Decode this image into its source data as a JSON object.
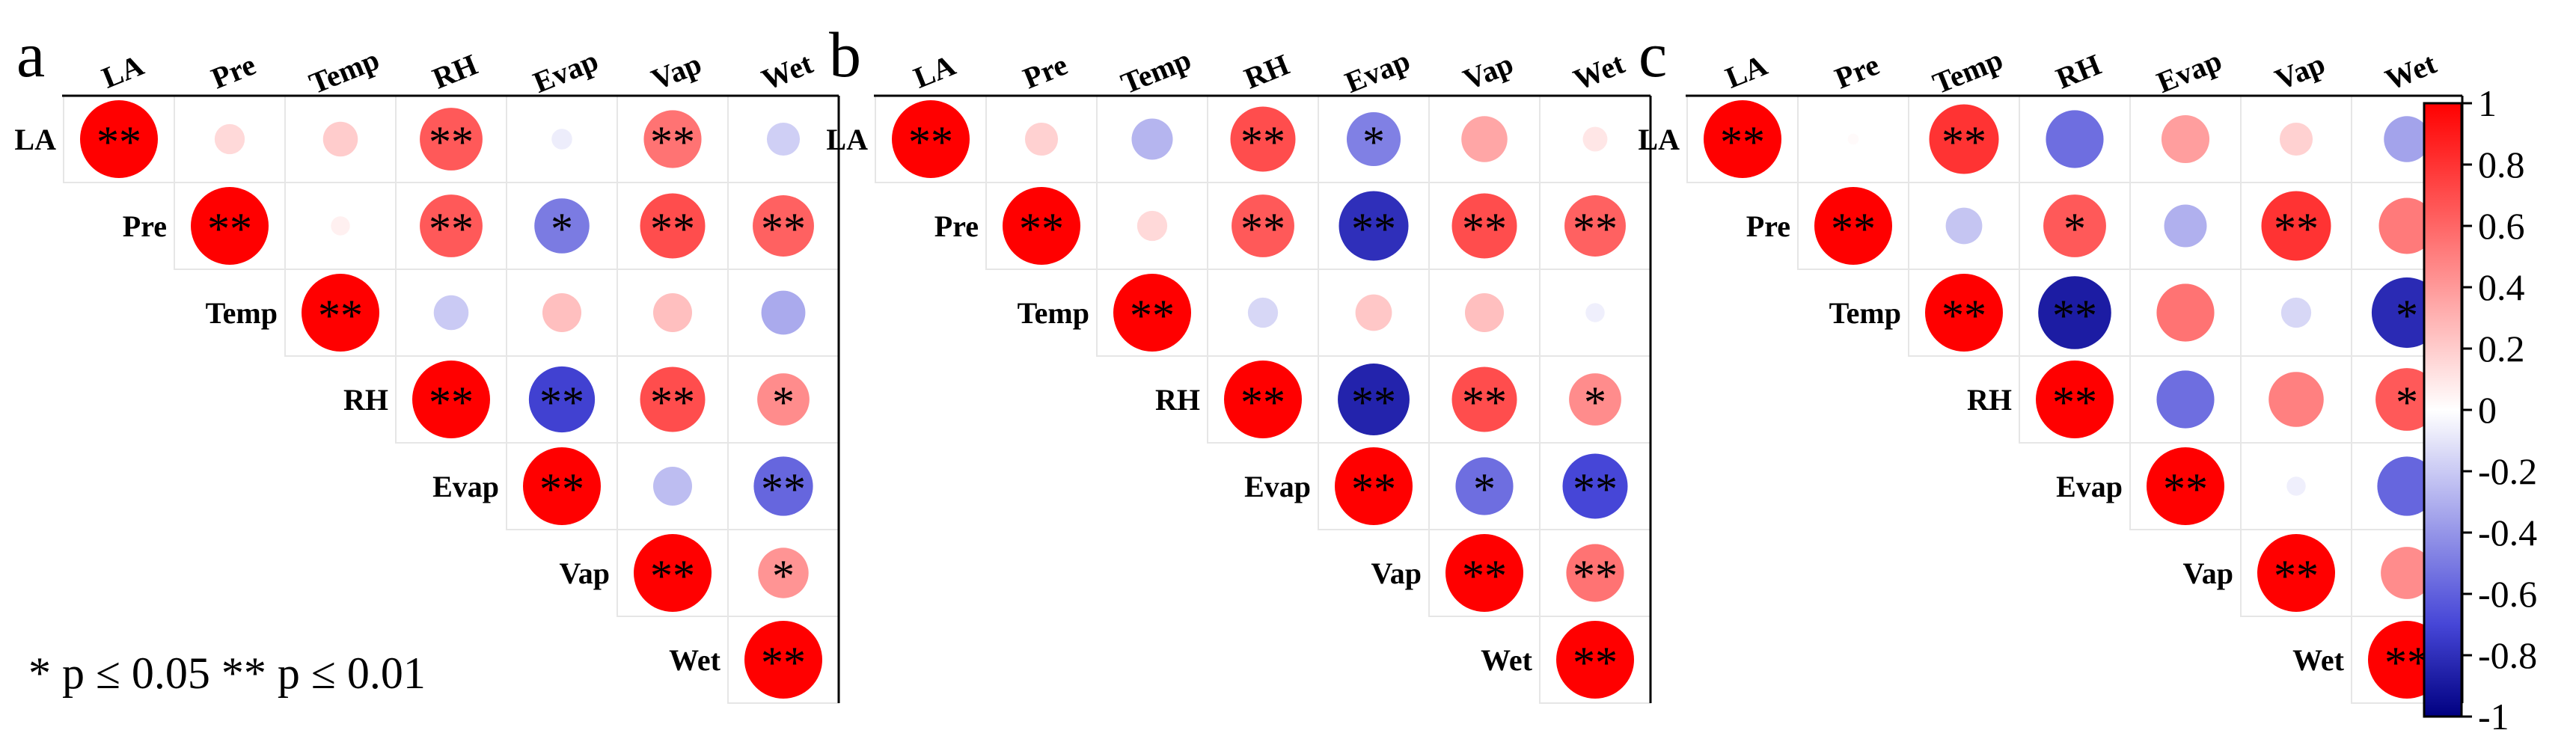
{
  "chart_data": [
    {
      "type": "heatmap",
      "panel": "a",
      "variables": [
        "LA",
        "Pre",
        "Temp",
        "RH",
        "Evap",
        "Vap",
        "Wet"
      ],
      "matrix": [
        [
          1.0,
          0.15,
          0.2,
          0.65,
          -0.07,
          0.55,
          -0.18
        ],
        [
          null,
          1.0,
          0.06,
          0.65,
          -0.5,
          0.7,
          0.62
        ],
        [
          null,
          null,
          1.0,
          -0.2,
          0.25,
          0.25,
          -0.32
        ],
        [
          null,
          null,
          null,
          1.0,
          -0.72,
          0.7,
          0.45
        ],
        [
          null,
          null,
          null,
          null,
          1.0,
          -0.25,
          -0.58
        ],
        [
          null,
          null,
          null,
          null,
          null,
          1.0,
          0.42
        ],
        [
          null,
          null,
          null,
          null,
          null,
          null,
          1.0
        ]
      ],
      "significance": [
        [
          "**",
          "",
          "",
          "**",
          "",
          "**",
          ""
        ],
        [
          "",
          "**",
          "",
          "**",
          "*",
          "**",
          "**"
        ],
        [
          "",
          "",
          "**",
          "",
          "",
          "",
          ""
        ],
        [
          "",
          "",
          "",
          "**",
          "**",
          "**",
          "*"
        ],
        [
          "",
          "",
          "",
          "",
          "**",
          "",
          "**"
        ],
        [
          "",
          "",
          "",
          "",
          "",
          "**",
          "*"
        ],
        [
          "",
          "",
          "",
          "",
          "",
          "",
          "**"
        ]
      ]
    },
    {
      "type": "heatmap",
      "panel": "b",
      "variables": [
        "LA",
        "Pre",
        "Temp",
        "RH",
        "Evap",
        "Vap",
        "Wet"
      ],
      "matrix": [
        [
          1.0,
          0.18,
          -0.28,
          0.7,
          -0.48,
          0.35,
          0.1
        ],
        [
          null,
          1.0,
          0.15,
          0.65,
          -0.8,
          0.7,
          0.62
        ],
        [
          null,
          null,
          1.0,
          -0.15,
          0.22,
          0.25,
          -0.06
        ],
        [
          null,
          null,
          null,
          1.0,
          -0.85,
          0.7,
          0.45
        ],
        [
          null,
          null,
          null,
          null,
          1.0,
          -0.55,
          -0.7
        ],
        [
          null,
          null,
          null,
          null,
          null,
          1.0,
          0.55
        ],
        [
          null,
          null,
          null,
          null,
          null,
          null,
          1.0
        ]
      ],
      "significance": [
        [
          "**",
          "",
          "",
          "**",
          "*",
          "",
          ""
        ],
        [
          "",
          "**",
          "",
          "**",
          "**",
          "**",
          "**"
        ],
        [
          "",
          "",
          "**",
          "",
          "",
          "",
          ""
        ],
        [
          "",
          "",
          "",
          "**",
          "**",
          "**",
          "*"
        ],
        [
          "",
          "",
          "",
          "",
          "**",
          "*",
          "**"
        ],
        [
          "",
          "",
          "",
          "",
          "",
          "**",
          "**"
        ],
        [
          "",
          "",
          "",
          "",
          "",
          "",
          "**"
        ]
      ]
    },
    {
      "type": "heatmap",
      "panel": "c",
      "variables": [
        "LA",
        "Pre",
        "Temp",
        "RH",
        "Evap",
        "Vap",
        "Wet"
      ],
      "matrix": [
        [
          1.0,
          0.02,
          0.8,
          -0.55,
          0.38,
          0.18,
          -0.35
        ],
        [
          null,
          1.0,
          -0.22,
          0.65,
          -0.3,
          0.8,
          0.52
        ],
        [
          null,
          null,
          1.0,
          -0.88,
          0.55,
          -0.15,
          -0.82
        ],
        [
          null,
          null,
          null,
          1.0,
          -0.55,
          0.5,
          0.65
        ],
        [
          null,
          null,
          null,
          null,
          1.0,
          -0.06,
          -0.58
        ],
        [
          null,
          null,
          null,
          null,
          null,
          1.0,
          0.45
        ],
        [
          null,
          null,
          null,
          null,
          null,
          null,
          1.0
        ]
      ],
      "significance": [
        [
          "**",
          "",
          "**",
          "",
          "",
          "",
          ""
        ],
        [
          "",
          "**",
          "",
          "*",
          "",
          "**",
          ""
        ],
        [
          "",
          "",
          "**",
          "**",
          "",
          "",
          "*"
        ],
        [
          "",
          "",
          "",
          "**",
          "",
          "",
          "*"
        ],
        [
          "",
          "",
          "",
          "",
          "**",
          "",
          ""
        ],
        [
          "",
          "",
          "",
          "",
          "",
          "**",
          ""
        ],
        [
          "",
          "",
          "",
          "",
          "",
          "",
          "**"
        ]
      ]
    }
  ],
  "legend_note": "* p ≤ 0.05   ** p ≤ 0.01",
  "colorbar": {
    "range": [
      -1,
      1
    ],
    "ticks": [
      1,
      0.8,
      0.6,
      0.4,
      0.2,
      0,
      -0.2,
      -0.4,
      -0.6,
      -0.8,
      -1
    ],
    "tick_labels": [
      "1",
      "0.8",
      "0.6",
      "0.4",
      "0.2",
      "0",
      "-0.2",
      "-0.4",
      "-0.6",
      "-0.8",
      "-1"
    ],
    "colors": {
      "positive": "#ff0000",
      "zero": "#ffffff",
      "negative": "#000080"
    }
  }
}
